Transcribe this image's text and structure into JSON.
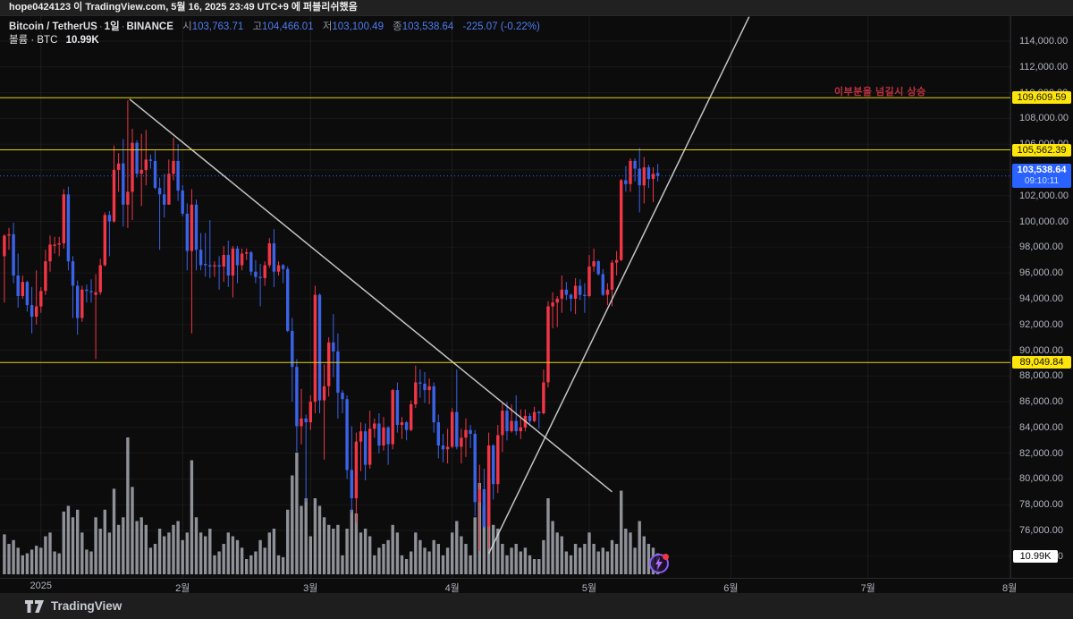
{
  "published_bar": {
    "text": "hope0424123 이 TradingView.com, 5월 16, 2025 23:49 UTC+9 에 퍼블리쉬했음"
  },
  "legend": {
    "symbol": "Bitcoin / TetherUS",
    "interval": "1일",
    "exchange": "BINANCE",
    "separator": "·",
    "ohlc": [
      {
        "label": "시",
        "value": "103,763.71"
      },
      {
        "label": "고",
        "value": "104,466.01"
      },
      {
        "label": "저",
        "value": "103,100.49"
      },
      {
        "label": "종",
        "value": "103,538.64"
      }
    ],
    "change": "-225.07 (-0.22%)",
    "volume_label": "볼륨 · BTC",
    "volume_value": "10.99K"
  },
  "annotation": {
    "text": "이부분을 넘길시 상승",
    "color": "#bf3140"
  },
  "price_axis": {
    "ticks": [
      "114,000.00",
      "112,000.00",
      "110,000.00",
      "108,000.00",
      "106,000.00",
      "104,000.00",
      "102,000.00",
      "100,000.00",
      "98,000.00",
      "96,000.00",
      "94,000.00",
      "92,000.00",
      "90,000.00",
      "88,000.00",
      "86,000.00",
      "84,000.00",
      "82,000.00",
      "80,000.00",
      "78,000.00",
      "76,000.00",
      "74,000.00"
    ],
    "last_price": {
      "label": "103,538.64",
      "price": 103538.64,
      "countdown": "09:10:11"
    },
    "volume_badge": "10.99K"
  },
  "time_axis": {
    "labels": [
      {
        "text": "2025",
        "day": 8
      },
      {
        "text": "2월",
        "day": 39
      },
      {
        "text": "3월",
        "day": 67
      },
      {
        "text": "4월",
        "day": 98
      },
      {
        "text": "5월",
        "day": 128
      },
      {
        "text": "6월",
        "day": 159
      },
      {
        "text": "7월",
        "day": 189
      },
      {
        "text": "8월",
        "day": 220
      }
    ]
  },
  "footer": {
    "brand": "TradingView"
  },
  "chart_data": {
    "type": "candlestick+volume",
    "title": "Bitcoin / TetherUS 1일 BINANCE",
    "start_date": "2024-12-24",
    "interval": "1D",
    "ylim": [
      72300,
      115900
    ],
    "grid": true,
    "colors": {
      "up": "#f23645",
      "down": "#3a63e8",
      "volume": "#a6a9b0",
      "level_line": "#e6d308",
      "trend_line": "#d8d8d8",
      "last_price_line": "#2962ff"
    },
    "horizontal_levels": [
      {
        "label": "109,609.59",
        "price": 109609.59
      },
      {
        "label": "105,562.39",
        "price": 105562.39
      },
      {
        "label": "89,049.84",
        "price": 89049.84
      }
    ],
    "trendlines": [
      {
        "name": "descending-resistance",
        "from_day": 27.4,
        "from_price": 109500,
        "to_day": 133,
        "to_price": 79000
      },
      {
        "name": "ascending-support",
        "from_day": 106,
        "from_price": 74200,
        "to_day": 163,
        "to_price": 115900
      }
    ],
    "last_price": 103538.64,
    "candles_ohlc_kusd": [
      [
        97.3,
        99.0,
        93.7,
        98.9
      ],
      [
        98.9,
        99.5,
        97.8,
        99.0
      ],
      [
        99.0,
        99.9,
        95.2,
        95.8
      ],
      [
        95.8,
        97.5,
        93.3,
        94.2
      ],
      [
        94.2,
        95.8,
        94.0,
        95.3
      ],
      [
        95.3,
        95.4,
        93.0,
        93.5
      ],
      [
        93.5,
        94.9,
        91.3,
        92.6
      ],
      [
        92.6,
        96.2,
        92.0,
        93.4
      ],
      [
        93.4,
        94.9,
        92.9,
        94.6
      ],
      [
        94.6,
        97.8,
        94.3,
        96.9
      ],
      [
        96.9,
        98.9,
        96.1,
        98.2
      ],
      [
        98.1,
        98.8,
        97.5,
        98.2
      ],
      [
        98.2,
        98.8,
        97.3,
        98.3
      ],
      [
        98.3,
        102.5,
        97.9,
        102.1
      ],
      [
        102.1,
        102.7,
        96.2,
        96.9
      ],
      [
        96.9,
        97.3,
        92.5,
        95.0
      ],
      [
        95.0,
        95.4,
        91.2,
        92.5
      ],
      [
        92.5,
        95.0,
        92.2,
        94.7
      ],
      [
        94.7,
        95.1,
        93.7,
        94.6
      ],
      [
        94.6,
        95.5,
        93.7,
        94.5
      ],
      [
        94.3,
        95.9,
        89.3,
        94.5
      ],
      [
        94.5,
        97.1,
        94.3,
        96.6
      ],
      [
        96.6,
        100.7,
        96.5,
        100.5
      ],
      [
        100.5,
        100.8,
        97.3,
        100.0
      ],
      [
        100.0,
        105.9,
        99.9,
        104.0
      ],
      [
        104.0,
        105.3,
        102.3,
        104.5
      ],
      [
        104.5,
        106.4,
        99.6,
        101.3
      ],
      [
        101.3,
        109.4,
        99.5,
        102.3
      ],
      [
        102.3,
        107.2,
        100.1,
        106.1
      ],
      [
        106.1,
        106.3,
        103.4,
        103.7
      ],
      [
        103.7,
        106.8,
        101.2,
        104.0
      ],
      [
        104.0,
        107.1,
        102.8,
        104.8
      ],
      [
        104.8,
        105.2,
        104.1,
        104.7
      ],
      [
        104.7,
        105.5,
        102.5,
        102.6
      ],
      [
        102.6,
        103.4,
        97.8,
        102.1
      ],
      [
        102.1,
        103.7,
        100.3,
        101.3
      ],
      [
        101.3,
        104.8,
        101.3,
        103.7
      ],
      [
        103.7,
        106.5,
        103.2,
        104.7
      ],
      [
        104.7,
        106.0,
        101.6,
        102.4
      ],
      [
        102.4,
        102.8,
        100.4,
        100.6
      ],
      [
        100.6,
        101.4,
        96.2,
        97.7
      ],
      [
        97.7,
        102.5,
        91.3,
        101.3
      ],
      [
        101.3,
        101.7,
        96.2,
        97.8
      ],
      [
        97.8,
        99.1,
        96.2,
        96.6
      ],
      [
        96.7,
        99.1,
        95.7,
        96.6
      ],
      [
        96.6,
        100.1,
        95.6,
        96.5
      ],
      [
        96.5,
        96.9,
        95.7,
        96.6
      ],
      [
        96.6,
        97.3,
        94.7,
        96.5
      ],
      [
        96.5,
        98.1,
        95.3,
        97.4
      ],
      [
        97.4,
        98.5,
        94.9,
        95.8
      ],
      [
        95.8,
        98.1,
        94.1,
        97.9
      ],
      [
        97.9,
        98.1,
        95.2,
        96.6
      ],
      [
        96.6,
        97.9,
        96.2,
        97.5
      ],
      [
        97.5,
        97.9,
        97.0,
        97.6
      ],
      [
        97.6,
        97.7,
        95.8,
        96.1
      ],
      [
        96.1,
        97.0,
        95.2,
        95.7
      ],
      [
        95.7,
        96.7,
        93.4,
        95.6
      ],
      [
        95.6,
        96.9,
        95.0,
        96.6
      ],
      [
        96.6,
        98.7,
        96.4,
        98.3
      ],
      [
        98.3,
        99.4,
        94.9,
        96.1
      ],
      [
        96.1,
        96.9,
        95.8,
        96.6
      ],
      [
        96.6,
        96.7,
        95.2,
        96.3
      ],
      [
        96.3,
        96.5,
        91.4,
        91.5
      ],
      [
        91.5,
        92.5,
        86.0,
        88.7
      ],
      [
        88.7,
        89.3,
        82.1,
        84.1
      ],
      [
        84.1,
        87.0,
        82.7,
        84.7
      ],
      [
        84.7,
        85.0,
        78.2,
        84.4
      ],
      [
        84.4,
        86.5,
        83.8,
        86.0
      ],
      [
        86.0,
        95.0,
        85.1,
        94.3
      ],
      [
        94.3,
        94.4,
        85.1,
        86.1
      ],
      [
        86.1,
        88.9,
        81.5,
        87.2
      ],
      [
        87.2,
        91.0,
        86.4,
        90.6
      ],
      [
        90.6,
        92.8,
        87.9,
        89.9
      ],
      [
        89.9,
        91.3,
        84.7,
        86.7
      ],
      [
        86.7,
        86.9,
        85.1,
        86.2
      ],
      [
        86.2,
        86.5,
        80.0,
        80.7
      ],
      [
        80.7,
        84.1,
        77.4,
        78.5
      ],
      [
        78.5,
        83.6,
        76.6,
        82.9
      ],
      [
        82.9,
        84.4,
        80.6,
        83.7
      ],
      [
        83.7,
        84.3,
        79.9,
        81.1
      ],
      [
        81.1,
        85.3,
        80.8,
        83.9
      ],
      [
        83.9,
        84.7,
        83.2,
        84.3
      ],
      [
        84.3,
        85.1,
        82.0,
        82.6
      ],
      [
        82.6,
        84.8,
        82.2,
        84.0
      ],
      [
        84.0,
        84.1,
        81.1,
        82.7
      ],
      [
        82.7,
        87.0,
        82.3,
        86.9
      ],
      [
        86.9,
        87.5,
        83.6,
        84.2
      ],
      [
        84.2,
        84.8,
        83.1,
        84.4
      ],
      [
        84.4,
        84.5,
        83.0,
        83.8
      ],
      [
        83.8,
        86.1,
        83.7,
        85.8
      ],
      [
        85.8,
        88.8,
        85.5,
        87.5
      ],
      [
        87.5,
        88.5,
        86.3,
        87.4
      ],
      [
        87.4,
        88.3,
        85.9,
        86.9
      ],
      [
        86.9,
        87.8,
        85.8,
        87.2
      ],
      [
        87.2,
        87.5,
        83.6,
        84.4
      ],
      [
        84.4,
        85.0,
        81.6,
        82.6
      ],
      [
        82.6,
        83.5,
        81.3,
        82.3
      ],
      [
        82.3,
        83.9,
        81.2,
        82.5
      ],
      [
        82.5,
        85.5,
        82.4,
        85.2
      ],
      [
        85.2,
        88.5,
        82.3,
        82.5
      ],
      [
        82.5,
        83.9,
        81.2,
        83.2
      ],
      [
        83.2,
        84.7,
        81.7,
        83.8
      ],
      [
        83.8,
        84.2,
        82.4,
        83.5
      ],
      [
        83.5,
        83.8,
        77.1,
        78.2
      ],
      [
        78.2,
        81.1,
        74.4,
        79.2
      ],
      [
        79.2,
        80.8,
        76.2,
        76.3
      ],
      [
        76.3,
        83.6,
        74.6,
        82.6
      ],
      [
        82.6,
        82.7,
        78.4,
        79.6
      ],
      [
        79.6,
        84.2,
        78.9,
        83.4
      ],
      [
        83.4,
        85.9,
        82.1,
        85.3
      ],
      [
        85.3,
        86.0,
        83.0,
        83.7
      ],
      [
        83.7,
        85.8,
        83.6,
        84.5
      ],
      [
        84.5,
        86.5,
        83.4,
        83.7
      ],
      [
        83.7,
        85.4,
        83.1,
        84.0
      ],
      [
        84.0,
        85.4,
        83.7,
        84.9
      ],
      [
        84.9,
        85.1,
        84.3,
        84.5
      ],
      [
        84.5,
        85.6,
        84.4,
        85.2
      ],
      [
        85.2,
        85.3,
        83.9,
        85.1
      ],
      [
        85.1,
        88.5,
        85.0,
        87.5
      ],
      [
        87.5,
        93.8,
        87.1,
        93.4
      ],
      [
        93.4,
        94.5,
        91.7,
        93.7
      ],
      [
        93.7,
        94.2,
        91.8,
        94.0
      ],
      [
        94.0,
        95.8,
        92.9,
        94.7
      ],
      [
        94.7,
        95.3,
        93.9,
        94.3
      ],
      [
        94.3,
        94.4,
        93.0,
        94.0
      ],
      [
        94.0,
        95.6,
        92.8,
        95.0
      ],
      [
        95.0,
        95.5,
        93.9,
        94.3
      ],
      [
        94.3,
        95.2,
        92.9,
        94.2
      ],
      [
        94.2,
        97.4,
        94.1,
        96.5
      ],
      [
        96.5,
        97.9,
        96.1,
        96.9
      ],
      [
        96.9,
        97.0,
        95.8,
        95.9
      ],
      [
        95.9,
        96.3,
        94.2,
        94.3
      ],
      [
        94.3,
        95.2,
        93.5,
        94.7
      ],
      [
        94.7,
        97.0,
        93.4,
        96.8
      ],
      [
        96.8,
        97.7,
        95.8,
        97.0
      ],
      [
        97.0,
        103.3,
        96.9,
        103.2
      ],
      [
        103.2,
        104.3,
        102.3,
        102.9
      ],
      [
        102.9,
        104.9,
        102.3,
        104.7
      ],
      [
        104.7,
        104.9,
        103.1,
        104.1
      ],
      [
        104.1,
        105.7,
        100.7,
        102.8
      ],
      [
        102.8,
        105.0,
        101.4,
        104.2
      ],
      [
        104.2,
        104.4,
        102.6,
        103.3
      ],
      [
        103.3,
        104.2,
        101.5,
        103.7
      ],
      [
        103.76,
        104.47,
        103.1,
        103.54
      ]
    ],
    "volumes_kbtc": [
      21,
      16,
      18,
      14,
      10,
      11,
      13,
      15,
      14,
      20,
      22,
      12,
      11,
      33,
      36,
      30,
      34,
      22,
      13,
      12,
      30,
      24,
      34,
      22,
      45,
      26,
      30,
      72,
      46,
      28,
      30,
      26,
      14,
      16,
      24,
      20,
      22,
      26,
      28,
      18,
      22,
      60,
      30,
      22,
      20,
      24,
      10,
      12,
      16,
      22,
      20,
      18,
      14,
      8,
      10,
      12,
      18,
      14,
      22,
      24,
      10,
      9,
      34,
      52,
      64,
      36,
      40,
      20,
      40,
      36,
      30,
      26,
      24,
      26,
      10,
      24,
      34,
      32,
      22,
      24,
      20,
      10,
      14,
      16,
      18,
      26,
      22,
      10,
      8,
      12,
      22,
      18,
      14,
      12,
      18,
      16,
      10,
      14,
      22,
      28,
      20,
      16,
      10,
      30,
      48,
      36,
      50,
      26,
      24,
      16,
      10,
      14,
      16,
      12,
      14,
      10,
      8,
      8,
      18,
      40,
      28,
      22,
      20,
      12,
      10,
      16,
      14,
      16,
      22,
      16,
      12,
      14,
      12,
      18,
      16,
      44,
      24,
      22,
      14,
      28,
      20,
      16,
      14,
      11
    ],
    "last_volume_label": "10.99K"
  }
}
